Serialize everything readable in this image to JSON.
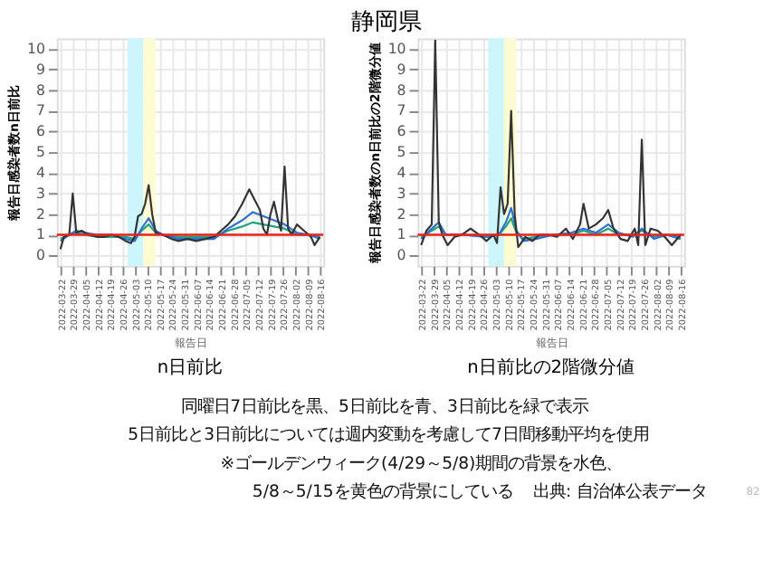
{
  "chart_data": [
    {
      "type": "line",
      "title": "n日前比",
      "xlabel": "報告日",
      "ylabel": "報告日感染者数n日前比",
      "grid": true,
      "marker": "none",
      "line_style": "solid",
      "xlim": [
        "2022-03-20",
        "2022-08-18"
      ],
      "ylim": [
        -0.5,
        10.5
      ],
      "yticks": [
        0,
        1,
        2,
        3,
        4,
        5,
        6,
        7,
        8,
        9,
        10
      ],
      "xticks": [
        "2022-03-22",
        "2022-03-29",
        "2022-04-05",
        "2022-04-12",
        "2022-04-19",
        "2022-04-26",
        "2022-05-03",
        "2022-05-10",
        "2022-05-17",
        "2022-05-24",
        "2022-05-31",
        "2022-06-07",
        "2022-06-14",
        "2022-06-21",
        "2022-06-28",
        "2022-07-05",
        "2022-07-12",
        "2022-07-19",
        "2022-07-26",
        "2022-08-02",
        "2022-08-09",
        "2022-08-16"
      ],
      "bands": [
        {
          "axis": "x",
          "from": "2022-04-29",
          "to": "2022-05-08",
          "color": "#ccf6fb"
        },
        {
          "axis": "x",
          "from": "2022-05-08",
          "to": "2022-05-15",
          "color": "#fdfbd2"
        }
      ],
      "ref_lines": [
        {
          "axis": "y",
          "value": 1,
          "color": "#e8211d"
        }
      ],
      "annotations": [
        "静岡県",
        "同曜日7日前比を黒、5日前比を青、3日前比を緑で表示",
        "5日前比と3日前比については週内変動を考慮して7日間移動平均を使用",
        "※ゴールデンウィーク(4/29～5/8)期間の背景を水色、",
        "5/8～5/15を黄色の背景にしている",
        "出典: 自治体公表データ",
        "82"
      ],
      "series": [
        {
          "color": "#333333",
          "x": [
            "2022-03-22",
            "2022-03-24",
            "2022-03-27",
            "2022-03-29",
            "2022-03-31",
            "2022-04-03",
            "2022-04-07",
            "2022-04-12",
            "2022-04-16",
            "2022-04-20",
            "2022-04-24",
            "2022-04-28",
            "2022-05-01",
            "2022-05-03",
            "2022-05-05",
            "2022-05-07",
            "2022-05-09",
            "2022-05-11",
            "2022-05-13",
            "2022-05-15",
            "2022-05-19",
            "2022-05-24",
            "2022-05-28",
            "2022-06-02",
            "2022-06-07",
            "2022-06-12",
            "2022-06-17",
            "2022-06-21",
            "2022-06-25",
            "2022-06-29",
            "2022-07-03",
            "2022-07-07",
            "2022-07-10",
            "2022-07-13",
            "2022-07-15",
            "2022-07-17",
            "2022-07-19",
            "2022-07-21",
            "2022-07-23",
            "2022-07-25",
            "2022-07-27",
            "2022-07-29",
            "2022-07-31",
            "2022-08-03",
            "2022-08-07",
            "2022-08-11",
            "2022-08-13",
            "2022-08-16"
          ],
          "values": [
            0.3,
            0.9,
            1.0,
            3.0,
            1.1,
            1.2,
            1.0,
            0.9,
            0.9,
            1.0,
            0.9,
            0.7,
            0.6,
            0.9,
            1.9,
            2.0,
            2.5,
            3.4,
            2.0,
            1.1,
            1.0,
            0.8,
            0.7,
            0.8,
            0.7,
            0.8,
            0.9,
            1.2,
            1.5,
            1.9,
            2.5,
            3.2,
            2.7,
            2.2,
            1.3,
            1.0,
            2.0,
            2.6,
            1.8,
            1.2,
            4.3,
            1.3,
            1.0,
            1.5,
            1.2,
            0.9,
            0.5,
            0.9
          ]
        },
        {
          "color": "#2e6fd0",
          "x": [
            "2022-03-22",
            "2022-03-27",
            "2022-03-31",
            "2022-04-05",
            "2022-04-12",
            "2022-04-20",
            "2022-04-28",
            "2022-05-03",
            "2022-05-07",
            "2022-05-11",
            "2022-05-15",
            "2022-05-19",
            "2022-05-28",
            "2022-06-07",
            "2022-06-17",
            "2022-06-25",
            "2022-07-03",
            "2022-07-09",
            "2022-07-15",
            "2022-07-21",
            "2022-07-27",
            "2022-08-03",
            "2022-08-10",
            "2022-08-16"
          ],
          "values": [
            0.7,
            1.0,
            1.2,
            1.1,
            1.0,
            1.0,
            0.8,
            0.7,
            1.3,
            1.8,
            1.2,
            1.0,
            0.8,
            0.8,
            0.8,
            1.3,
            1.7,
            2.1,
            1.9,
            1.7,
            1.5,
            1.1,
            1.0,
            0.8
          ]
        },
        {
          "color": "#1fa37a",
          "x": [
            "2022-03-22",
            "2022-03-27",
            "2022-03-31",
            "2022-04-05",
            "2022-04-12",
            "2022-04-20",
            "2022-04-28",
            "2022-05-03",
            "2022-05-07",
            "2022-05-11",
            "2022-05-15",
            "2022-05-19",
            "2022-05-28",
            "2022-06-07",
            "2022-06-17",
            "2022-06-25",
            "2022-07-03",
            "2022-07-09",
            "2022-07-15",
            "2022-07-21",
            "2022-07-27",
            "2022-08-03",
            "2022-08-10",
            "2022-08-16"
          ],
          "values": [
            0.8,
            1.0,
            1.1,
            1.0,
            0.9,
            0.9,
            0.9,
            0.8,
            1.2,
            1.5,
            1.1,
            1.0,
            0.9,
            0.9,
            0.9,
            1.2,
            1.4,
            1.6,
            1.5,
            1.4,
            1.3,
            1.0,
            1.0,
            0.9
          ]
        }
      ]
    },
    {
      "type": "line",
      "title": "n日前比の2階微分値",
      "xlabel": "報告日",
      "ylabel": "報告日感染者数のn日前比の2階微分値",
      "grid": true,
      "marker": "none",
      "line_style": "solid",
      "xlim": [
        "2022-03-20",
        "2022-08-18"
      ],
      "ylim": [
        -0.5,
        10.5
      ],
      "yticks": [
        0,
        1,
        2,
        3,
        4,
        5,
        6,
        7,
        8,
        9,
        10
      ],
      "xticks": [
        "2022-03-22",
        "2022-03-29",
        "2022-04-05",
        "2022-04-12",
        "2022-04-19",
        "2022-04-26",
        "2022-05-03",
        "2022-05-10",
        "2022-05-17",
        "2022-05-24",
        "2022-05-31",
        "2022-06-07",
        "2022-06-14",
        "2022-06-21",
        "2022-06-28",
        "2022-07-05",
        "2022-07-12",
        "2022-07-19",
        "2022-07-26",
        "2022-08-02",
        "2022-08-09",
        "2022-08-16"
      ],
      "bands": [
        {
          "axis": "x",
          "from": "2022-04-29",
          "to": "2022-05-08",
          "color": "#ccf6fb"
        },
        {
          "axis": "x",
          "from": "2022-05-08",
          "to": "2022-05-15",
          "color": "#fdfbd2"
        }
      ],
      "ref_lines": [
        {
          "axis": "y",
          "value": 1,
          "color": "#e8211d"
        }
      ],
      "series": [
        {
          "color": "#333333",
          "x": [
            "2022-03-22",
            "2022-03-25",
            "2022-03-28",
            "2022-03-30",
            "2022-04-01",
            "2022-04-03",
            "2022-04-06",
            "2022-04-10",
            "2022-04-14",
            "2022-04-19",
            "2022-04-24",
            "2022-04-28",
            "2022-05-02",
            "2022-05-04",
            "2022-05-06",
            "2022-05-08",
            "2022-05-10",
            "2022-05-12",
            "2022-05-14",
            "2022-05-16",
            "2022-05-20",
            "2022-05-24",
            "2022-05-28",
            "2022-06-02",
            "2022-06-07",
            "2022-06-12",
            "2022-06-16",
            "2022-06-20",
            "2022-06-22",
            "2022-06-25",
            "2022-06-29",
            "2022-07-03",
            "2022-07-06",
            "2022-07-09",
            "2022-07-13",
            "2022-07-17",
            "2022-07-21",
            "2022-07-23",
            "2022-07-25",
            "2022-07-27",
            "2022-07-30",
            "2022-08-03",
            "2022-08-07",
            "2022-08-11",
            "2022-08-16"
          ],
          "values": [
            0.5,
            1.2,
            1.5,
            10.4,
            1.6,
            1.0,
            0.5,
            0.9,
            1.0,
            1.3,
            1.0,
            0.7,
            1.0,
            0.6,
            3.3,
            2.0,
            2.5,
            7.0,
            2.0,
            0.4,
            0.9,
            0.7,
            1.0,
            1.0,
            0.9,
            1.3,
            0.8,
            1.5,
            2.5,
            1.3,
            1.5,
            1.8,
            2.2,
            1.3,
            0.8,
            0.7,
            1.3,
            0.5,
            5.6,
            0.5,
            1.3,
            1.2,
            0.9,
            0.5,
            1.0
          ]
        },
        {
          "color": "#2e6fd0",
          "x": [
            "2022-03-22",
            "2022-03-28",
            "2022-04-01",
            "2022-04-05",
            "2022-04-15",
            "2022-04-28",
            "2022-05-05",
            "2022-05-09",
            "2022-05-12",
            "2022-05-15",
            "2022-05-19",
            "2022-05-26",
            "2022-06-05",
            "2022-06-15",
            "2022-06-22",
            "2022-06-29",
            "2022-07-06",
            "2022-07-12",
            "2022-07-20",
            "2022-07-25",
            "2022-08-01",
            "2022-08-08",
            "2022-08-16"
          ],
          "values": [
            0.8,
            1.3,
            1.6,
            1.0,
            1.0,
            0.9,
            1.0,
            1.6,
            2.3,
            1.2,
            0.7,
            0.8,
            1.0,
            1.1,
            1.3,
            1.1,
            1.5,
            1.1,
            0.9,
            1.3,
            0.8,
            1.0,
            0.8
          ]
        },
        {
          "color": "#1fa37a",
          "x": [
            "2022-03-22",
            "2022-03-28",
            "2022-04-01",
            "2022-04-05",
            "2022-04-15",
            "2022-04-28",
            "2022-05-05",
            "2022-05-09",
            "2022-05-12",
            "2022-05-15",
            "2022-05-19",
            "2022-05-26",
            "2022-06-05",
            "2022-06-15",
            "2022-06-22",
            "2022-06-29",
            "2022-07-06",
            "2022-07-12",
            "2022-07-20",
            "2022-07-25",
            "2022-08-01",
            "2022-08-08",
            "2022-08-16"
          ],
          "values": [
            0.9,
            1.2,
            1.4,
            1.0,
            1.0,
            0.9,
            1.0,
            1.4,
            1.8,
            1.1,
            0.8,
            0.9,
            1.0,
            1.0,
            1.2,
            1.0,
            1.3,
            1.0,
            1.0,
            1.2,
            0.9,
            1.0,
            0.9
          ]
        }
      ]
    }
  ]
}
